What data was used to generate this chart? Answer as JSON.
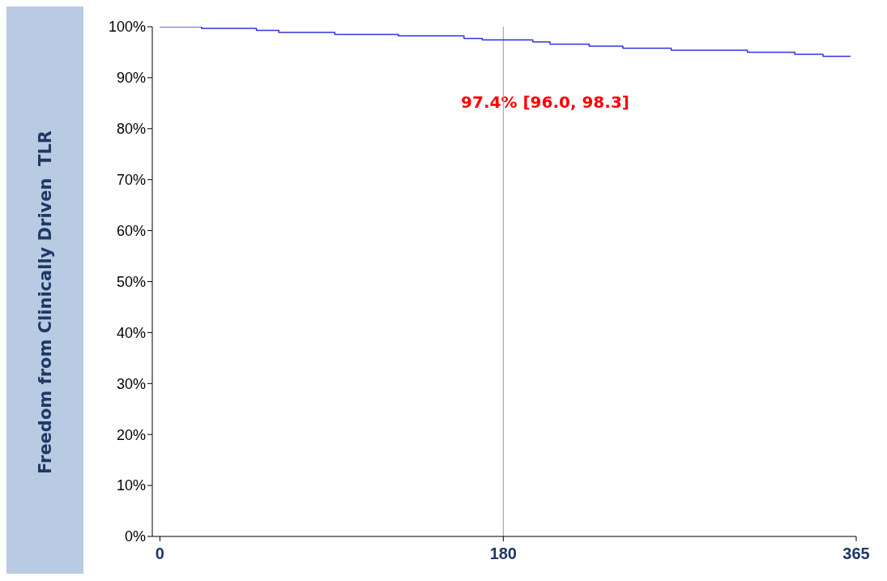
{
  "chart_data": {
    "type": "step",
    "ylabel": "Freedom from Clinically Driven  TLR",
    "x": [
      0,
      21.8,
      50.6,
      62.3,
      91.7,
      125,
      159.4,
      169,
      195.5,
      204.5,
      225,
      242.7,
      268,
      308,
      332.8,
      347.6,
      362
    ],
    "series": [
      {
        "color": "#3333dd",
        "values": [
          100,
          99.7,
          99.3,
          98.9,
          98.5,
          98.2,
          97.7,
          97.4,
          97.0,
          96.6,
          96.2,
          95.8,
          95.4,
          95.0,
          94.6,
          94.2,
          94.2
        ]
      }
    ],
    "xlim": [
      -4,
      365
    ],
    "xticks": [
      0,
      180,
      365
    ],
    "ylim": [
      0,
      100
    ],
    "yticks": [
      {
        "value": 0,
        "label": "0%"
      },
      {
        "value": 10,
        "label": "10%"
      },
      {
        "value": 20,
        "label": "20%"
      },
      {
        "value": 30,
        "label": "30%"
      },
      {
        "value": 40,
        "label": "40%"
      },
      {
        "value": 50,
        "label": "50%"
      },
      {
        "value": 60,
        "label": "60%"
      },
      {
        "value": 70,
        "label": "70%"
      },
      {
        "value": 80,
        "label": "80%"
      },
      {
        "value": 90,
        "label": "90%"
      },
      {
        "value": 100,
        "label": "100%"
      }
    ],
    "ref_lines": [
      {
        "axis": "x",
        "value": 180,
        "color": "#999999"
      }
    ],
    "annotations": [
      "97.4% [96.0, 98.3]"
    ],
    "grid": false,
    "marker": "none",
    "line_style": "solid"
  }
}
